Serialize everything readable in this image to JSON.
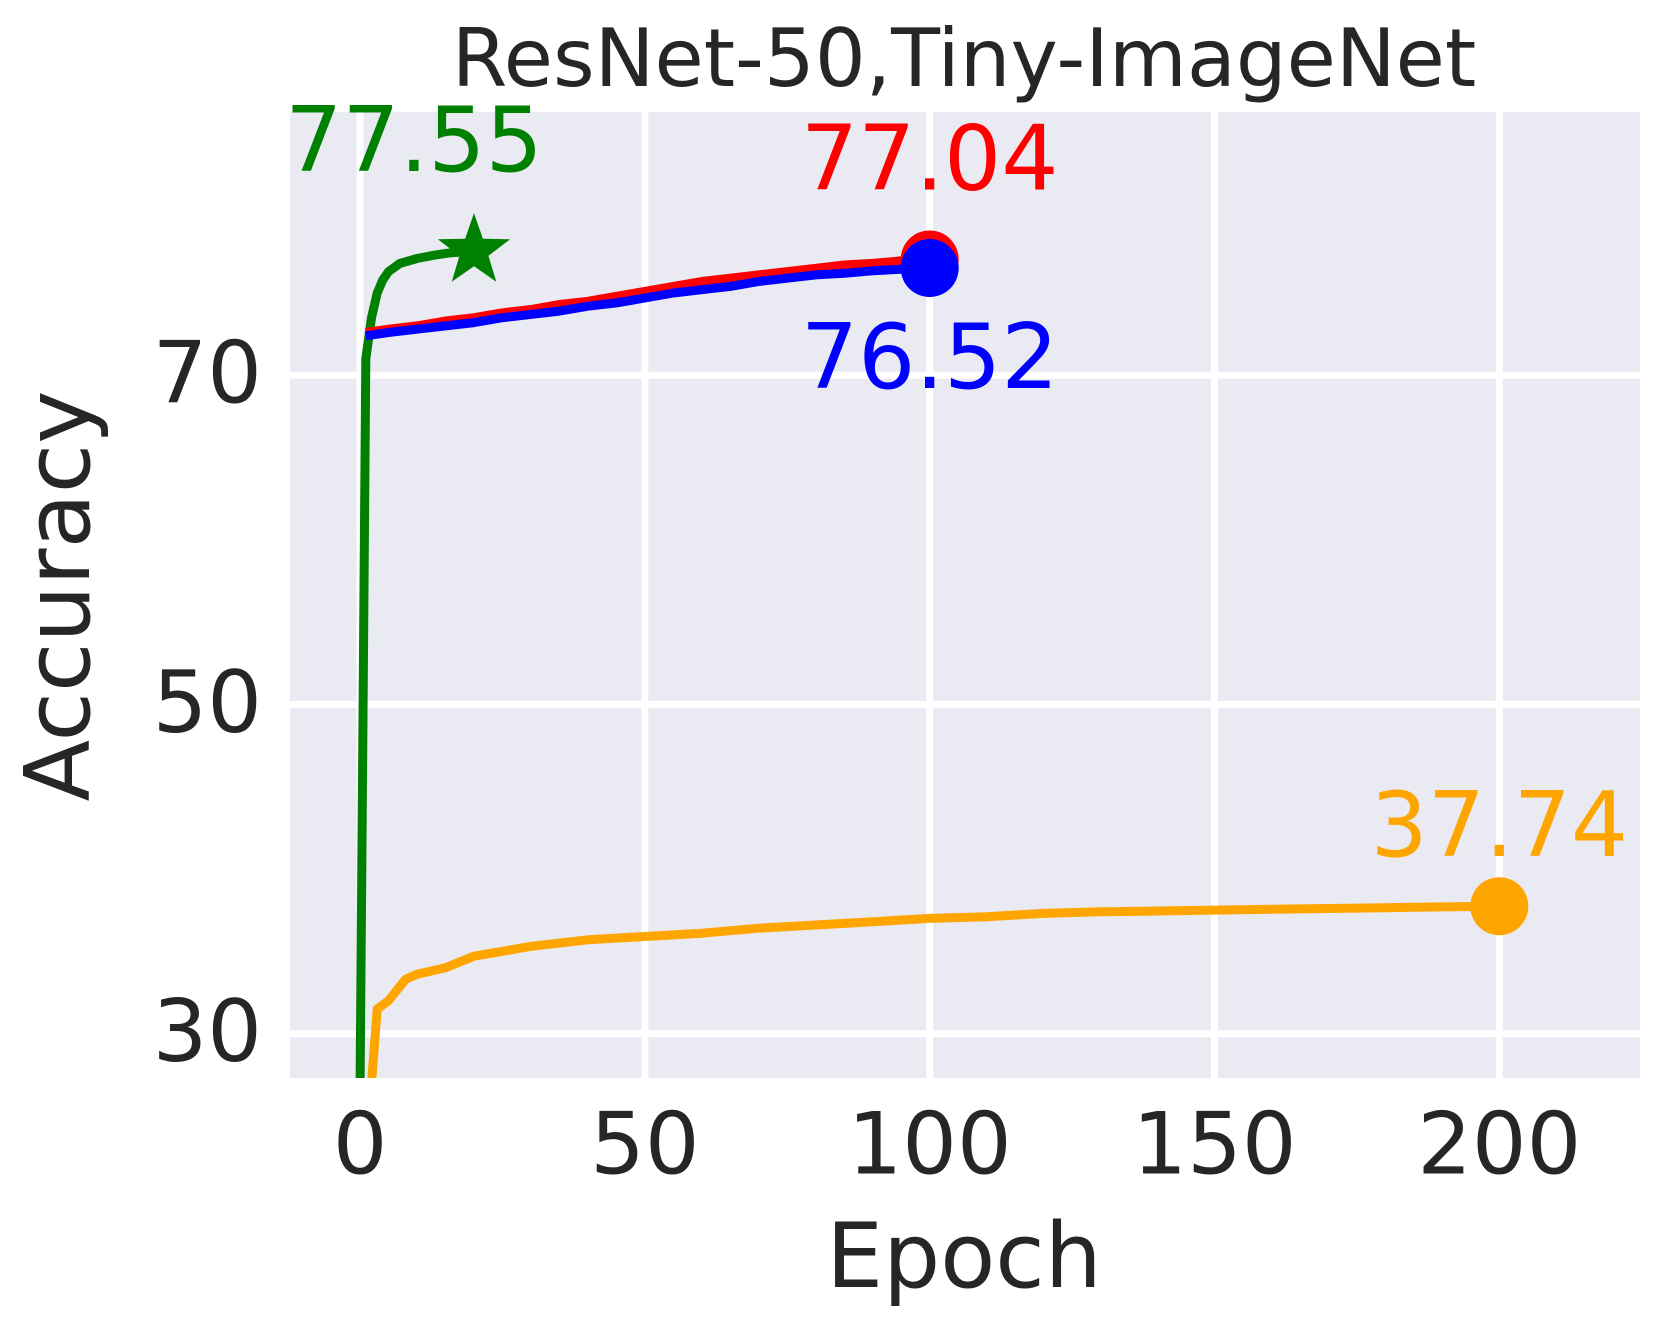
{
  "chart_data": {
    "type": "line",
    "title": "ResNet-50,Tiny-ImageNet",
    "xlabel": "Epoch",
    "ylabel": "Accuracy",
    "xlim": [
      -12.3,
      224.7
    ],
    "ylim": [
      27.3,
      86.0
    ],
    "xticks": [
      0,
      50,
      100,
      150,
      200
    ],
    "yticks": [
      30,
      50,
      70
    ],
    "grid": true,
    "series": [
      {
        "color": "green",
        "marker": "star",
        "x": [
          0,
          1,
          2,
          3,
          4,
          5,
          7,
          10,
          13,
          16,
          20
        ],
        "values": [
          27,
          71,
          73.5,
          75,
          75.8,
          76.3,
          76.8,
          77.1,
          77.3,
          77.45,
          77.55
        ]
      },
      {
        "color": "red",
        "marker": "circle",
        "x": [
          1,
          5,
          10,
          15,
          20,
          25,
          30,
          35,
          40,
          45,
          50,
          55,
          60,
          65,
          70,
          75,
          80,
          85,
          90,
          95,
          100
        ],
        "values": [
          72.6,
          72.8,
          73.0,
          73.3,
          73.5,
          73.8,
          74.0,
          74.3,
          74.5,
          74.8,
          75.1,
          75.4,
          75.7,
          75.9,
          76.1,
          76.3,
          76.5,
          76.7,
          76.8,
          76.95,
          77.04
        ]
      },
      {
        "color": "blue",
        "marker": "circle",
        "x": [
          1,
          5,
          10,
          15,
          20,
          25,
          30,
          35,
          40,
          45,
          50,
          55,
          60,
          65,
          70,
          75,
          80,
          85,
          90,
          95,
          100
        ],
        "values": [
          72.4,
          72.6,
          72.8,
          73.0,
          73.2,
          73.5,
          73.7,
          73.9,
          74.2,
          74.4,
          74.7,
          75.0,
          75.2,
          75.4,
          75.7,
          75.9,
          76.1,
          76.2,
          76.35,
          76.45,
          76.52
        ]
      },
      {
        "color": "orange",
        "marker": "circle",
        "x": [
          2,
          3,
          5,
          8,
          10,
          15,
          20,
          25,
          30,
          40,
          50,
          60,
          70,
          80,
          90,
          100,
          110,
          120,
          130,
          140,
          150,
          160,
          170,
          180,
          190,
          200
        ],
        "values": [
          27,
          31.5,
          32,
          33.3,
          33.6,
          34,
          34.7,
          35,
          35.3,
          35.7,
          35.9,
          36.1,
          36.4,
          36.6,
          36.8,
          37.0,
          37.1,
          37.3,
          37.4,
          37.45,
          37.5,
          37.55,
          37.6,
          37.65,
          37.7,
          37.74
        ]
      }
    ]
  }
}
